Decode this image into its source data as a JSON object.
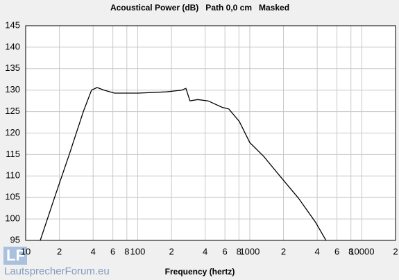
{
  "chart_data": {
    "type": "line",
    "title": "Acoustical Power (dB)   Path 0,0 cm   Masked",
    "x_label": "Frequency (hertz)",
    "xscale": "log",
    "x": [
      13.5,
      18.5,
      24.5,
      32.7,
      38.7,
      43.4,
      50,
      62,
      102,
      181,
      247,
      269,
      293,
      343,
      425,
      565,
      651,
      807,
      1000,
      1330,
      1900,
      2710,
      3870,
      4790
    ],
    "values": [
      95,
      105.7,
      115,
      125,
      130,
      130.6,
      130,
      129.3,
      129.3,
      129.6,
      130,
      130.4,
      127.5,
      127.8,
      127.5,
      126,
      125.6,
      122.7,
      117.8,
      114.6,
      109.7,
      104.9,
      99.2,
      95
    ],
    "color": "#000000",
    "xlim": [
      10,
      20000
    ],
    "ylim": [
      95,
      145
    ],
    "yticks": [
      95,
      100,
      105,
      110,
      115,
      120,
      125,
      130,
      135,
      140,
      145
    ],
    "xticks": [
      10,
      {
        "value": 20,
        "label": "2"
      },
      {
        "value": 40,
        "label": "4"
      },
      {
        "value": 60,
        "label": "6"
      },
      {
        "value": 80,
        "label": "8"
      },
      100,
      {
        "value": 200,
        "label": "2"
      },
      {
        "value": 400,
        "label": "4"
      },
      {
        "value": 600,
        "label": "6"
      },
      {
        "value": 800,
        "label": "8"
      },
      1000,
      {
        "value": 2000,
        "label": "2"
      },
      {
        "value": 4000,
        "label": "4"
      },
      {
        "value": 6000,
        "label": "6"
      },
      {
        "value": 8000,
        "label": "8"
      },
      10000,
      {
        "value": 20000,
        "label": "2"
      }
    ],
    "grid": true
  },
  "watermark": "LautsprecherForum.eu"
}
